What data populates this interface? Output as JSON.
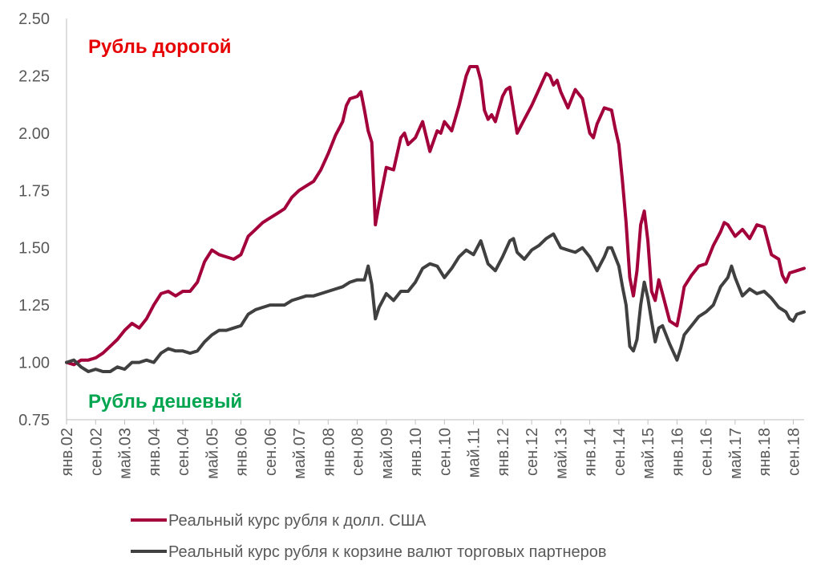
{
  "chart_data": {
    "type": "line",
    "title": "",
    "xlabel": "",
    "ylabel": "",
    "ylim": [
      0.75,
      2.5
    ],
    "y_ticks": [
      "0.75",
      "1.00",
      "1.25",
      "1.50",
      "1.75",
      "2.00",
      "2.25",
      "2.50"
    ],
    "grid": false,
    "legend_position": "bottom",
    "x_start": "2002-01",
    "x_end": "2018-12",
    "x_tick_labels": [
      {
        "date": "2002-01",
        "label": "янв.02"
      },
      {
        "date": "2002-09",
        "label": "сен.02"
      },
      {
        "date": "2003-05",
        "label": "май.03"
      },
      {
        "date": "2004-01",
        "label": "янв.04"
      },
      {
        "date": "2004-09",
        "label": "сен.04"
      },
      {
        "date": "2005-05",
        "label": "май.05"
      },
      {
        "date": "2006-01",
        "label": "янв.06"
      },
      {
        "date": "2006-09",
        "label": "сен.06"
      },
      {
        "date": "2007-05",
        "label": "май.07"
      },
      {
        "date": "2008-01",
        "label": "янв.08"
      },
      {
        "date": "2008-09",
        "label": "сен.08"
      },
      {
        "date": "2009-05",
        "label": "май.09"
      },
      {
        "date": "2010-01",
        "label": "янв.10"
      },
      {
        "date": "2010-09",
        "label": "сен.10"
      },
      {
        "date": "2011-05",
        "label": "май.11"
      },
      {
        "date": "2012-01",
        "label": "янв.12"
      },
      {
        "date": "2012-09",
        "label": "сен.12"
      },
      {
        "date": "2013-05",
        "label": "май.13"
      },
      {
        "date": "2014-01",
        "label": "янв.14"
      },
      {
        "date": "2014-09",
        "label": "сен.14"
      },
      {
        "date": "2015-05",
        "label": "май.15"
      },
      {
        "date": "2016-01",
        "label": "янв.16"
      },
      {
        "date": "2016-09",
        "label": "сен.16"
      },
      {
        "date": "2017-05",
        "label": "май.17"
      },
      {
        "date": "2018-01",
        "label": "янв.18"
      },
      {
        "date": "2018-09",
        "label": "сен.18"
      }
    ],
    "annotations": [
      {
        "text": "Рубль дорогой",
        "color": "#e60000"
      },
      {
        "text": "Рубль дешевый",
        "color": "#00a550"
      }
    ],
    "series": [
      {
        "name": "Реальный курс рубля к долл. США",
        "color": "#a3003b",
        "points": [
          [
            "2002-01",
            1.0
          ],
          [
            "2002-03",
            0.99
          ],
          [
            "2002-05",
            1.01
          ],
          [
            "2002-07",
            1.01
          ],
          [
            "2002-09",
            1.02
          ],
          [
            "2002-11",
            1.04
          ],
          [
            "2003-01",
            1.07
          ],
          [
            "2003-03",
            1.1
          ],
          [
            "2003-05",
            1.14
          ],
          [
            "2003-07",
            1.17
          ],
          [
            "2003-09",
            1.15
          ],
          [
            "2003-11",
            1.19
          ],
          [
            "2004-01",
            1.25
          ],
          [
            "2004-03",
            1.3
          ],
          [
            "2004-05",
            1.31
          ],
          [
            "2004-07",
            1.29
          ],
          [
            "2004-09",
            1.31
          ],
          [
            "2004-11",
            1.31
          ],
          [
            "2005-01",
            1.35
          ],
          [
            "2005-03",
            1.44
          ],
          [
            "2005-05",
            1.49
          ],
          [
            "2005-07",
            1.47
          ],
          [
            "2005-09",
            1.46
          ],
          [
            "2005-11",
            1.45
          ],
          [
            "2006-01",
            1.47
          ],
          [
            "2006-03",
            1.55
          ],
          [
            "2006-05",
            1.58
          ],
          [
            "2006-07",
            1.61
          ],
          [
            "2006-09",
            1.63
          ],
          [
            "2006-11",
            1.65
          ],
          [
            "2007-01",
            1.67
          ],
          [
            "2007-03",
            1.72
          ],
          [
            "2007-05",
            1.75
          ],
          [
            "2007-07",
            1.77
          ],
          [
            "2007-09",
            1.79
          ],
          [
            "2007-11",
            1.84
          ],
          [
            "2008-01",
            1.91
          ],
          [
            "2008-03",
            1.99
          ],
          [
            "2008-05",
            2.05
          ],
          [
            "2008-06",
            2.12
          ],
          [
            "2008-07",
            2.15
          ],
          [
            "2008-09",
            2.16
          ],
          [
            "2008-10",
            2.18
          ],
          [
            "2008-11",
            2.1
          ],
          [
            "2008-12",
            2.01
          ],
          [
            "2009-01",
            1.96
          ],
          [
            "2009-02",
            1.6
          ],
          [
            "2009-03",
            1.69
          ],
          [
            "2009-05",
            1.85
          ],
          [
            "2009-07",
            1.84
          ],
          [
            "2009-09",
            1.98
          ],
          [
            "2009-10",
            2.0
          ],
          [
            "2009-11",
            1.95
          ],
          [
            "2010-01",
            1.98
          ],
          [
            "2010-03",
            2.05
          ],
          [
            "2010-05",
            1.92
          ],
          [
            "2010-07",
            2.01
          ],
          [
            "2010-08",
            2.0
          ],
          [
            "2010-09",
            2.05
          ],
          [
            "2010-11",
            2.01
          ],
          [
            "2011-01",
            2.12
          ],
          [
            "2011-03",
            2.25
          ],
          [
            "2011-04",
            2.29
          ],
          [
            "2011-06",
            2.29
          ],
          [
            "2011-07",
            2.23
          ],
          [
            "2011-08",
            2.1
          ],
          [
            "2011-09",
            2.06
          ],
          [
            "2011-10",
            2.08
          ],
          [
            "2011-11",
            2.05
          ],
          [
            "2012-01",
            2.16
          ],
          [
            "2012-02",
            2.19
          ],
          [
            "2012-03",
            2.2
          ],
          [
            "2012-05",
            2.0
          ],
          [
            "2012-07",
            2.06
          ],
          [
            "2012-09",
            2.12
          ],
          [
            "2012-11",
            2.19
          ],
          [
            "2013-01",
            2.26
          ],
          [
            "2013-02",
            2.25
          ],
          [
            "2013-03",
            2.21
          ],
          [
            "2013-04",
            2.23
          ],
          [
            "2013-05",
            2.18
          ],
          [
            "2013-07",
            2.11
          ],
          [
            "2013-09",
            2.19
          ],
          [
            "2013-11",
            2.15
          ],
          [
            "2014-01",
            2.0
          ],
          [
            "2014-02",
            1.98
          ],
          [
            "2014-03",
            2.04
          ],
          [
            "2014-05",
            2.11
          ],
          [
            "2014-07",
            2.1
          ],
          [
            "2014-08",
            2.02
          ],
          [
            "2014-09",
            1.95
          ],
          [
            "2014-10",
            1.79
          ],
          [
            "2014-11",
            1.61
          ],
          [
            "2014-12",
            1.37
          ],
          [
            "2015-01",
            1.29
          ],
          [
            "2015-02",
            1.4
          ],
          [
            "2015-03",
            1.6
          ],
          [
            "2015-04",
            1.66
          ],
          [
            "2015-05",
            1.53
          ],
          [
            "2015-06",
            1.31
          ],
          [
            "2015-07",
            1.27
          ],
          [
            "2015-08",
            1.36
          ],
          [
            "2015-09",
            1.3
          ],
          [
            "2015-10",
            1.24
          ],
          [
            "2015-11",
            1.18
          ],
          [
            "2016-01",
            1.16
          ],
          [
            "2016-02",
            1.24
          ],
          [
            "2016-03",
            1.33
          ],
          [
            "2016-05",
            1.38
          ],
          [
            "2016-07",
            1.42
          ],
          [
            "2016-09",
            1.43
          ],
          [
            "2016-11",
            1.51
          ],
          [
            "2017-01",
            1.57
          ],
          [
            "2017-02",
            1.61
          ],
          [
            "2017-03",
            1.6
          ],
          [
            "2017-05",
            1.55
          ],
          [
            "2017-07",
            1.58
          ],
          [
            "2017-09",
            1.54
          ],
          [
            "2017-10",
            1.57
          ],
          [
            "2017-11",
            1.6
          ],
          [
            "2018-01",
            1.59
          ],
          [
            "2018-03",
            1.47
          ],
          [
            "2018-05",
            1.45
          ],
          [
            "2018-06",
            1.38
          ],
          [
            "2018-07",
            1.35
          ],
          [
            "2018-08",
            1.39
          ],
          [
            "2018-10",
            1.4
          ],
          [
            "2018-12",
            1.41
          ]
        ]
      },
      {
        "name": "Реальный курс рубля к корзине валют торговых партнеров",
        "color": "#404040",
        "points": [
          [
            "2002-01",
            1.0
          ],
          [
            "2002-03",
            1.01
          ],
          [
            "2002-05",
            0.98
          ],
          [
            "2002-07",
            0.96
          ],
          [
            "2002-09",
            0.97
          ],
          [
            "2002-11",
            0.96
          ],
          [
            "2003-01",
            0.96
          ],
          [
            "2003-03",
            0.98
          ],
          [
            "2003-05",
            0.97
          ],
          [
            "2003-07",
            1.0
          ],
          [
            "2003-09",
            1.0
          ],
          [
            "2003-11",
            1.01
          ],
          [
            "2004-01",
            1.0
          ],
          [
            "2004-03",
            1.04
          ],
          [
            "2004-05",
            1.06
          ],
          [
            "2004-07",
            1.05
          ],
          [
            "2004-09",
            1.05
          ],
          [
            "2004-11",
            1.04
          ],
          [
            "2005-01",
            1.05
          ],
          [
            "2005-03",
            1.09
          ],
          [
            "2005-05",
            1.12
          ],
          [
            "2005-07",
            1.14
          ],
          [
            "2005-09",
            1.14
          ],
          [
            "2005-11",
            1.15
          ],
          [
            "2006-01",
            1.16
          ],
          [
            "2006-03",
            1.21
          ],
          [
            "2006-05",
            1.23
          ],
          [
            "2006-07",
            1.24
          ],
          [
            "2006-09",
            1.25
          ],
          [
            "2006-11",
            1.25
          ],
          [
            "2007-01",
            1.25
          ],
          [
            "2007-03",
            1.27
          ],
          [
            "2007-05",
            1.28
          ],
          [
            "2007-07",
            1.29
          ],
          [
            "2007-09",
            1.29
          ],
          [
            "2007-11",
            1.3
          ],
          [
            "2008-01",
            1.31
          ],
          [
            "2008-03",
            1.32
          ],
          [
            "2008-05",
            1.33
          ],
          [
            "2008-07",
            1.35
          ],
          [
            "2008-09",
            1.36
          ],
          [
            "2008-11",
            1.36
          ],
          [
            "2008-12",
            1.42
          ],
          [
            "2009-01",
            1.34
          ],
          [
            "2009-02",
            1.19
          ],
          [
            "2009-03",
            1.24
          ],
          [
            "2009-05",
            1.3
          ],
          [
            "2009-07",
            1.27
          ],
          [
            "2009-09",
            1.31
          ],
          [
            "2009-11",
            1.31
          ],
          [
            "2010-01",
            1.35
          ],
          [
            "2010-03",
            1.41
          ],
          [
            "2010-05",
            1.43
          ],
          [
            "2010-07",
            1.42
          ],
          [
            "2010-09",
            1.37
          ],
          [
            "2010-11",
            1.41
          ],
          [
            "2011-01",
            1.46
          ],
          [
            "2011-03",
            1.49
          ],
          [
            "2011-05",
            1.47
          ],
          [
            "2011-07",
            1.53
          ],
          [
            "2011-09",
            1.43
          ],
          [
            "2011-11",
            1.4
          ],
          [
            "2012-01",
            1.46
          ],
          [
            "2012-03",
            1.53
          ],
          [
            "2012-04",
            1.54
          ],
          [
            "2012-05",
            1.48
          ],
          [
            "2012-07",
            1.45
          ],
          [
            "2012-09",
            1.49
          ],
          [
            "2012-11",
            1.51
          ],
          [
            "2013-01",
            1.54
          ],
          [
            "2013-03",
            1.56
          ],
          [
            "2013-05",
            1.5
          ],
          [
            "2013-07",
            1.49
          ],
          [
            "2013-09",
            1.48
          ],
          [
            "2013-11",
            1.5
          ],
          [
            "2014-01",
            1.46
          ],
          [
            "2014-03",
            1.4
          ],
          [
            "2014-05",
            1.46
          ],
          [
            "2014-06",
            1.5
          ],
          [
            "2014-07",
            1.5
          ],
          [
            "2014-09",
            1.42
          ],
          [
            "2014-10",
            1.33
          ],
          [
            "2014-11",
            1.25
          ],
          [
            "2014-12",
            1.07
          ],
          [
            "2015-01",
            1.05
          ],
          [
            "2015-02",
            1.1
          ],
          [
            "2015-03",
            1.25
          ],
          [
            "2015-04",
            1.35
          ],
          [
            "2015-05",
            1.28
          ],
          [
            "2015-06",
            1.18
          ],
          [
            "2015-07",
            1.09
          ],
          [
            "2015-08",
            1.15
          ],
          [
            "2015-09",
            1.16
          ],
          [
            "2015-11",
            1.08
          ],
          [
            "2016-01",
            1.01
          ],
          [
            "2016-02",
            1.06
          ],
          [
            "2016-03",
            1.12
          ],
          [
            "2016-05",
            1.16
          ],
          [
            "2016-07",
            1.2
          ],
          [
            "2016-09",
            1.22
          ],
          [
            "2016-11",
            1.25
          ],
          [
            "2017-01",
            1.33
          ],
          [
            "2017-03",
            1.37
          ],
          [
            "2017-04",
            1.42
          ],
          [
            "2017-05",
            1.37
          ],
          [
            "2017-07",
            1.29
          ],
          [
            "2017-09",
            1.32
          ],
          [
            "2017-11",
            1.3
          ],
          [
            "2018-01",
            1.31
          ],
          [
            "2018-03",
            1.28
          ],
          [
            "2018-05",
            1.24
          ],
          [
            "2018-07",
            1.22
          ],
          [
            "2018-08",
            1.19
          ],
          [
            "2018-09",
            1.18
          ],
          [
            "2018-10",
            1.21
          ],
          [
            "2018-12",
            1.22
          ]
        ]
      }
    ]
  }
}
